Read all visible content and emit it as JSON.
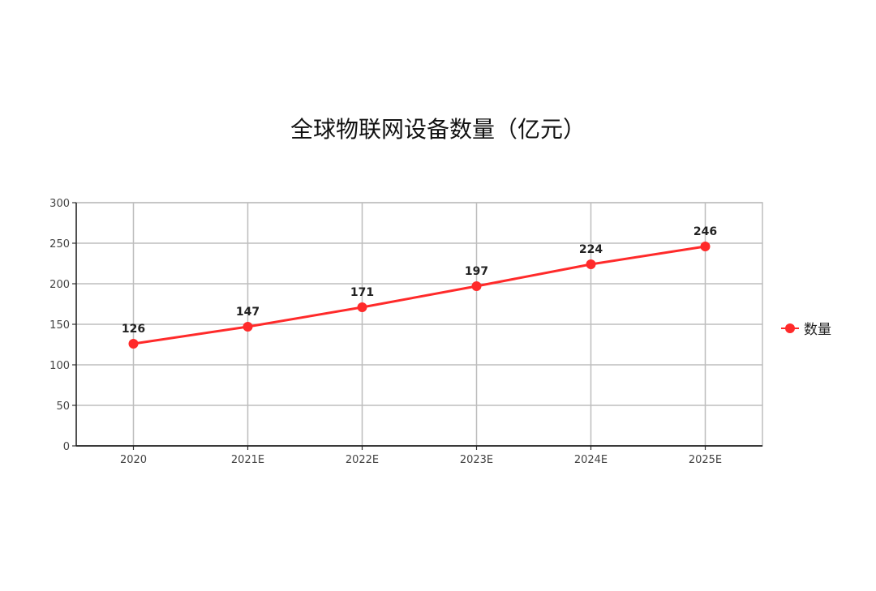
{
  "chart_data": {
    "type": "line",
    "title": "全球物联网设备数量（亿元）",
    "categories": [
      "2020",
      "2021E",
      "2022E",
      "2023E",
      "2024E",
      "2025E"
    ],
    "series": [
      {
        "name": "数量",
        "values": [
          126,
          147,
          171,
          197,
          224,
          246
        ],
        "color": "#ff2a2a"
      }
    ],
    "ylim": [
      0,
      300
    ],
    "yticks": [
      "0",
      "50",
      "100",
      "150",
      "200",
      "250",
      "300"
    ],
    "grid": true,
    "legend_position": "right",
    "data_labels": true
  }
}
